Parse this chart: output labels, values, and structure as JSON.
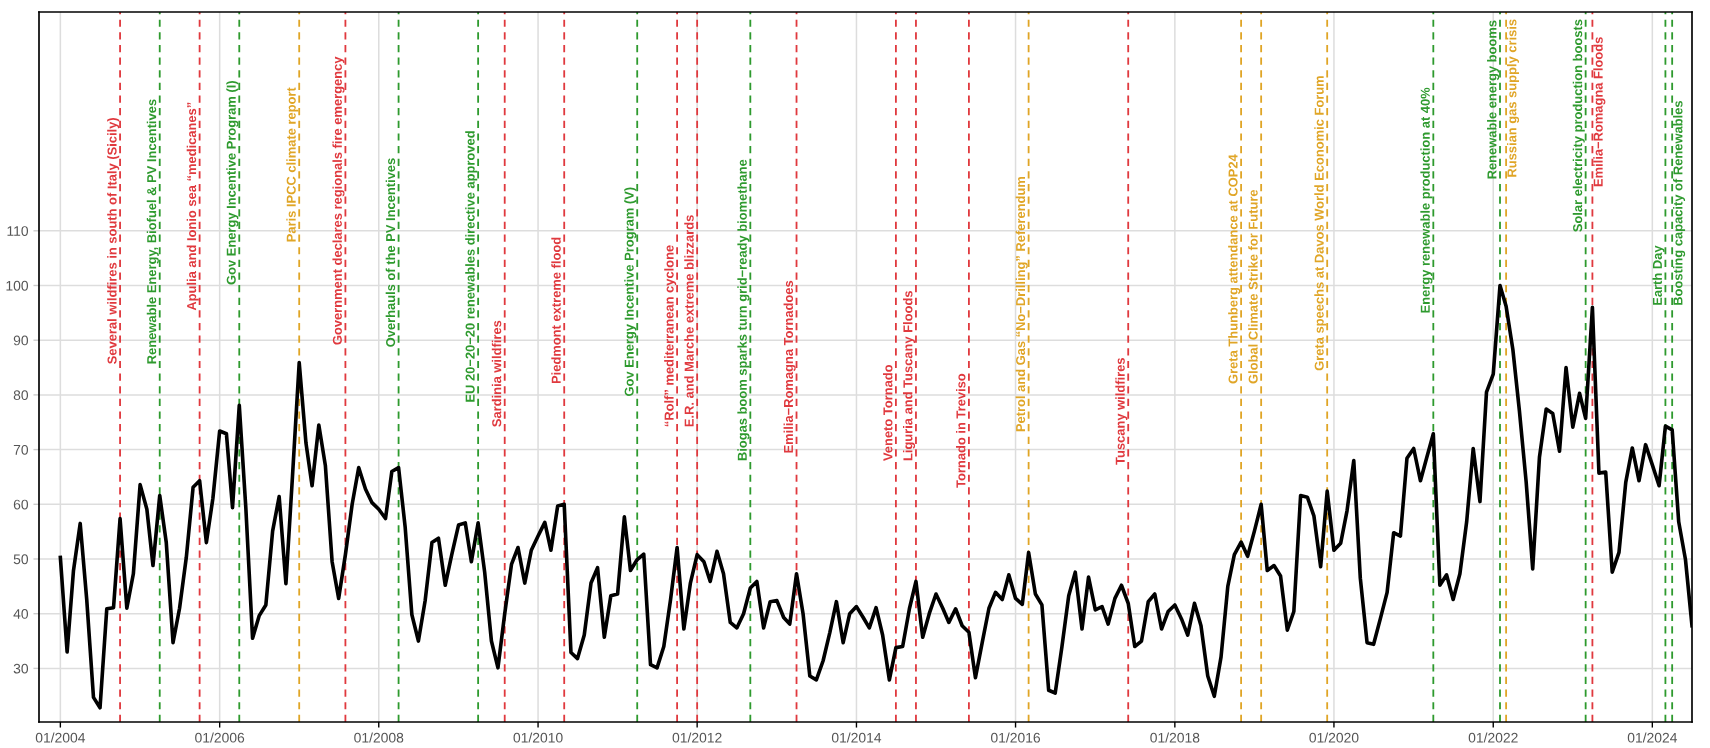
{
  "chart_data": {
    "type": "line",
    "x": [
      "2004-01",
      "2004-02",
      "2004-03",
      "2004-04",
      "2004-05",
      "2004-06",
      "2004-07",
      "2004-08",
      "2004-09",
      "2004-10",
      "2004-11",
      "2004-12",
      "2005-01",
      "2005-02",
      "2005-03",
      "2005-04",
      "2005-05",
      "2005-06",
      "2005-07",
      "2005-08",
      "2005-09",
      "2005-10",
      "2005-11",
      "2005-12",
      "2006-01",
      "2006-02",
      "2006-03",
      "2006-04",
      "2006-05",
      "2006-06",
      "2006-07",
      "2006-08",
      "2006-09",
      "2006-10",
      "2006-11",
      "2006-12",
      "2007-01",
      "2007-02",
      "2007-03",
      "2007-04",
      "2007-05",
      "2007-06",
      "2007-07",
      "2007-08",
      "2007-09",
      "2007-10",
      "2007-11",
      "2007-12",
      "2008-01",
      "2008-02",
      "2008-03",
      "2008-04",
      "2008-05",
      "2008-06",
      "2008-07",
      "2008-08",
      "2008-09",
      "2008-10",
      "2008-11",
      "2008-12",
      "2009-01",
      "2009-02",
      "2009-03",
      "2009-04",
      "2009-05",
      "2009-06",
      "2009-07",
      "2009-08",
      "2009-09",
      "2009-10",
      "2009-11",
      "2009-12",
      "2010-01",
      "2010-02",
      "2010-03",
      "2010-04",
      "2010-05",
      "2010-06",
      "2010-07",
      "2010-08",
      "2010-09",
      "2010-10",
      "2010-11",
      "2010-12",
      "2011-01",
      "2011-02",
      "2011-03",
      "2011-04",
      "2011-05",
      "2011-06",
      "2011-07",
      "2011-08",
      "2011-09",
      "2011-10",
      "2011-11",
      "2011-12",
      "2012-01",
      "2012-02",
      "2012-03",
      "2012-04",
      "2012-05",
      "2012-06",
      "2012-07",
      "2012-08",
      "2012-09",
      "2012-10",
      "2012-11",
      "2012-12",
      "2013-01",
      "2013-02",
      "2013-03",
      "2013-04",
      "2013-05",
      "2013-06",
      "2013-07",
      "2013-08",
      "2013-09",
      "2013-10",
      "2013-11",
      "2013-12",
      "2014-01",
      "2014-02",
      "2014-03",
      "2014-04",
      "2014-05",
      "2014-06",
      "2014-07",
      "2014-08",
      "2014-09",
      "2014-10",
      "2014-11",
      "2014-12",
      "2015-01",
      "2015-02",
      "2015-03",
      "2015-04",
      "2015-05",
      "2015-06",
      "2015-07",
      "2015-08",
      "2015-09",
      "2015-10",
      "2015-11",
      "2015-12",
      "2016-01",
      "2016-02",
      "2016-03",
      "2016-04",
      "2016-05",
      "2016-06",
      "2016-07",
      "2016-08",
      "2016-09",
      "2016-10",
      "2016-11",
      "2016-12",
      "2017-01",
      "2017-02",
      "2017-03",
      "2017-04",
      "2017-05",
      "2017-06",
      "2017-07",
      "2017-08",
      "2017-09",
      "2017-10",
      "2017-11",
      "2017-12",
      "2018-01",
      "2018-02",
      "2018-03",
      "2018-04",
      "2018-05",
      "2018-06",
      "2018-07",
      "2018-08",
      "2018-09",
      "2018-10",
      "2018-11",
      "2018-12",
      "2019-01",
      "2019-02",
      "2019-03",
      "2019-04",
      "2019-05",
      "2019-06",
      "2019-07",
      "2019-08",
      "2019-09",
      "2019-10",
      "2019-11",
      "2019-12",
      "2020-01",
      "2020-02",
      "2020-03",
      "2020-04",
      "2020-05",
      "2020-06",
      "2020-07",
      "2020-08",
      "2020-09",
      "2020-10",
      "2020-11",
      "2020-12",
      "2021-01",
      "2021-02",
      "2021-03",
      "2021-04",
      "2021-05",
      "2021-06",
      "2021-07",
      "2021-08",
      "2021-09",
      "2021-10",
      "2021-11",
      "2021-12",
      "2022-01",
      "2022-02",
      "2022-03",
      "2022-04",
      "2022-05",
      "2022-06",
      "2022-07",
      "2022-08",
      "2022-09",
      "2022-10",
      "2022-11",
      "2022-12",
      "2023-01",
      "2023-02",
      "2023-03",
      "2023-04",
      "2023-05",
      "2023-06",
      "2023-07",
      "2023-08",
      "2023-09",
      "2023-10",
      "2023-11",
      "2023-12",
      "2024-01",
      "2024-02",
      "2024-03",
      "2024-04",
      "2024-05",
      "2024-06",
      "2024-07"
    ],
    "series": [
      {
        "color": "#000000",
        "values": [
          50.3,
          33,
          47.8,
          56.5,
          42.6,
          24.7,
          22.8,
          40.9,
          41.1,
          57.4,
          41,
          47.3,
          63.6,
          59.1,
          48.8,
          61.6,
          53,
          34.7,
          41,
          50.3,
          63.1,
          64.3,
          53,
          61.1,
          73.4,
          72.9,
          59.4,
          78.1,
          59.4,
          35.5,
          39.6,
          41.6,
          55.1,
          61.4,
          45.5,
          65,
          85.9,
          71.2,
          63.4,
          74.5,
          67.1,
          49.5,
          42.8,
          50.8,
          60,
          66.7,
          62.8,
          60.3,
          59.1,
          57.4,
          66,
          66.7,
          55.9,
          39.8,
          35,
          42.4,
          53,
          53.8,
          45.2,
          50.8,
          56.2,
          56.6,
          49.5,
          56.6,
          47.6,
          35,
          30.1,
          40,
          49,
          52.1,
          45.6,
          51.6,
          54.2,
          56.7,
          51.6,
          59.7,
          60,
          32.9,
          31.8,
          36.1,
          45.6,
          48.4,
          35.7,
          43.3,
          43.6,
          57.7,
          47.9,
          49.9,
          50.9,
          30.7,
          30.1,
          34,
          42.6,
          52.1,
          37.2,
          45.6,
          50.8,
          49.5,
          45.9,
          51.4,
          47.3,
          38.4,
          37.4,
          40,
          44.7,
          45.9,
          37.4,
          42.2,
          42.4,
          39.3,
          38.1,
          47.3,
          40,
          28.6,
          27.9,
          31.4,
          36.6,
          42.2,
          34.7,
          40,
          41.3,
          39.3,
          37.4,
          41.1,
          36.1,
          27.9,
          33.8,
          34,
          40.9,
          45.9,
          35.7,
          40,
          43.6,
          41,
          38.4,
          40.9,
          37.8,
          36.6,
          28.3,
          34.7,
          41,
          43.9,
          42.6,
          47.1,
          42.8,
          41.7,
          51.2,
          43.6,
          41.6,
          26,
          25.5,
          34,
          43.3,
          47.6,
          37.2,
          46.7,
          40.7,
          41.3,
          38.1,
          42.8,
          45.2,
          41.9,
          34,
          35,
          42.2,
          43.6,
          37.2,
          40.4,
          41.6,
          39,
          36.1,
          41.9,
          37.8,
          28.6,
          24.9,
          32.1,
          45,
          50.8,
          53.1,
          50.5,
          55.1,
          60,
          47.9,
          48.8,
          46.9,
          37,
          40.4,
          61.6,
          61.3,
          57.9,
          48.6,
          62.4,
          51.6,
          52.9,
          58.8,
          68,
          46.5,
          34.7,
          34.4,
          39.1,
          43.9,
          54.8,
          54.2,
          68.4,
          70.2,
          64.3,
          68.4,
          72.9,
          45.2,
          47.1,
          42.6,
          47.3,
          56.8,
          70.2,
          60.5,
          80.5,
          83.8,
          100,
          96.2,
          88.3,
          77.1,
          64.1,
          48.2,
          68.6,
          77.4,
          76.6,
          69.7,
          85,
          74.1,
          80.3,
          75.7,
          96,
          65.7,
          65.9,
          47.6,
          51.2,
          64,
          70.3,
          64.3,
          70.9,
          67.2,
          63.4,
          74.3,
          73.6,
          56.8,
          49.9,
          37.8
        ]
      }
    ],
    "xlim": [
      "2003-09-25",
      "2024-07-01"
    ],
    "xticks": [
      {
        "value": "2004-01",
        "label": "01/2004"
      },
      {
        "value": "2006-01",
        "label": "01/2006"
      },
      {
        "value": "2008-01",
        "label": "01/2008"
      },
      {
        "value": "2010-01",
        "label": "01/2010"
      },
      {
        "value": "2012-01",
        "label": "01/2012"
      },
      {
        "value": "2014-01",
        "label": "01/2014"
      },
      {
        "value": "2016-01",
        "label": "01/2016"
      },
      {
        "value": "2018-01",
        "label": "01/2018"
      },
      {
        "value": "2020-01",
        "label": "01/2020"
      },
      {
        "value": "2022-01",
        "label": "01/2022"
      },
      {
        "value": "2024-01",
        "label": "01/2024"
      }
    ],
    "ylim": [
      20.2,
      150
    ],
    "yticks": [
      30,
      40,
      50,
      60,
      70,
      80,
      90,
      100,
      110
    ],
    "grid": true,
    "marker": "none",
    "line_style": "solid",
    "ref_lines": [
      {
        "axis": "x",
        "value": "2004-10",
        "label": "Several wildfires in south of Italy (Sicily)",
        "color": "#e0393e",
        "line_style": "dashed"
      },
      {
        "axis": "x",
        "value": "2005-04",
        "label": "Renewable Energy, Biofuel & PV Incentives",
        "color": "#2e9a2e",
        "line_style": "dashed"
      },
      {
        "axis": "x",
        "value": "2005-10",
        "label": "Apulia and Ionio sea “medicanes”",
        "color": "#e0393e",
        "line_style": "dashed"
      },
      {
        "axis": "x",
        "value": "2006-04",
        "label": "Gov Energy Incentive Program (I)",
        "color": "#2e9a2e",
        "line_style": "dashed"
      },
      {
        "axis": "x",
        "value": "2007-01",
        "label": "Paris IPCC climate report",
        "color": "#e0a526",
        "line_style": "dashed"
      },
      {
        "axis": "x",
        "value": "2007-08",
        "label": "Government declares regionals fire emergency",
        "color": "#e0393e",
        "line_style": "dashed"
      },
      {
        "axis": "x",
        "value": "2008-04",
        "label": "Overhauls of the PV Incentives",
        "color": "#2e9a2e",
        "line_style": "dashed"
      },
      {
        "axis": "x",
        "value": "2009-04",
        "label": "EU 20−20−20 renewables directive approved",
        "color": "#2e9a2e",
        "line_style": "dashed"
      },
      {
        "axis": "x",
        "value": "2009-08",
        "label": "Sardinia wildfires",
        "color": "#e0393e",
        "line_style": "dashed"
      },
      {
        "axis": "x",
        "value": "2010-05",
        "label": "Piedmont extreme flood",
        "color": "#e0393e",
        "line_style": "dashed"
      },
      {
        "axis": "x",
        "value": "2011-04",
        "label": "Gov Energy Incentive Program (V)",
        "color": "#2e9a2e",
        "line_style": "dashed"
      },
      {
        "axis": "x",
        "value": "2011-10",
        "label": "“Rolf” mediterranean cyclone",
        "color": "#e0393e",
        "line_style": "dashed"
      },
      {
        "axis": "x",
        "value": "2012-01",
        "label": "E.R. and Marche extreme blizzards",
        "color": "#e0393e",
        "line_style": "dashed"
      },
      {
        "axis": "x",
        "value": "2012-09",
        "label": "Biogas boom sparks turn grid−ready biomethane",
        "color": "#2e9a2e",
        "line_style": "dashed"
      },
      {
        "axis": "x",
        "value": "2013-04",
        "label": "Emilia−Romagna Tornadoes",
        "color": "#e0393e",
        "line_style": "dashed"
      },
      {
        "axis": "x",
        "value": "2014-07",
        "label": "Veneto Tornado",
        "color": "#e0393e",
        "line_style": "dashed"
      },
      {
        "axis": "x",
        "value": "2014-10",
        "label": "Liguria and Tuscany Floods",
        "color": "#e0393e",
        "line_style": "dashed"
      },
      {
        "axis": "x",
        "value": "2015-06",
        "label": "Tornado in Treviso",
        "color": "#e0393e",
        "line_style": "dashed"
      },
      {
        "axis": "x",
        "value": "2016-03",
        "label": "Petrol and Gas “No−Drilling” Referendum",
        "color": "#e0a526",
        "line_style": "dashed"
      },
      {
        "axis": "x",
        "value": "2017-06",
        "label": "Tuscany wildfires",
        "color": "#e0393e",
        "line_style": "dashed"
      },
      {
        "axis": "x",
        "value": "2018-11",
        "label": "Greta Thunberg attendance at COP24",
        "color": "#e0a526",
        "line_style": "dashed"
      },
      {
        "axis": "x",
        "value": "2019-02",
        "label": "Global Climate Strike for Future",
        "color": "#e0a526",
        "line_style": "dashed"
      },
      {
        "axis": "x",
        "value": "2019-12",
        "label": "Greta speechs at Davos World Economic Forum",
        "color": "#e0a526",
        "line_style": "dashed"
      },
      {
        "axis": "x",
        "value": "2021-04",
        "label": "Energy renewable production at 40%",
        "color": "#2e9a2e",
        "line_style": "dashed"
      },
      {
        "axis": "x",
        "value": "2022-02",
        "label": "Renewable energy booms",
        "color": "#2e9a2e",
        "line_style": "dashed"
      },
      {
        "axis": "x",
        "value": "2022-03",
        "label": "Russian gas supply crisis",
        "color": "#e0a526",
        "line_style": "dashed"
      },
      {
        "axis": "x",
        "value": "2023-03",
        "label": "Solar electricity production boosts",
        "color": "#2e9a2e",
        "line_style": "dashed"
      },
      {
        "axis": "x",
        "value": "2023-04",
        "label": "Emilia−Romagna Floods",
        "color": "#e0393e",
        "line_style": "dashed"
      },
      {
        "axis": "x",
        "value": "2024-03",
        "label": "Earth Day",
        "color": "#2e9a2e",
        "line_style": "dashed"
      },
      {
        "axis": "x",
        "value": "2024-04",
        "label": "Boosting capacity of Renewables",
        "color": "#2e9a2e",
        "line_style": "dashed"
      }
    ]
  }
}
